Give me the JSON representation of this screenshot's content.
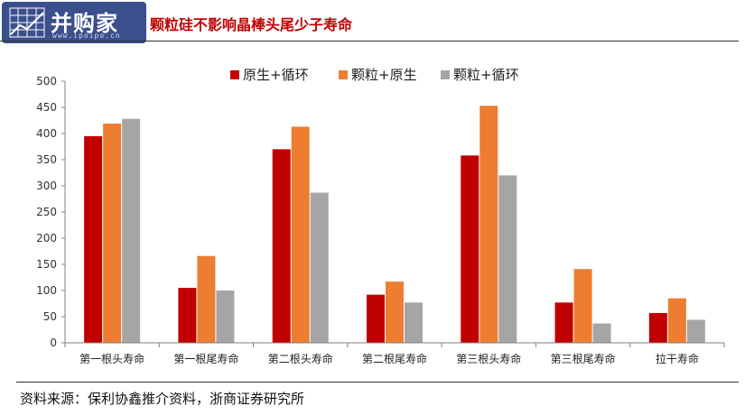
{
  "header": {
    "logo_text": "并购家",
    "logo_sub": "www.ipoipo.cn",
    "title": "颗粒硅不影响晶棒头尾少子寿命"
  },
  "footer": {
    "source": "资料来源：保利协鑫推介资料，浙商证券研究所"
  },
  "colors": {
    "title": "#c00000",
    "series": [
      "#c00000",
      "#ed7d31",
      "#a5a5a5"
    ]
  },
  "chart_data": {
    "type": "bar",
    "title": "",
    "xlabel": "",
    "ylabel": "",
    "ylim": [
      0,
      500
    ],
    "yticks": [
      0,
      50,
      100,
      150,
      200,
      250,
      300,
      350,
      400,
      450,
      500
    ],
    "grid": false,
    "legend": "top-center",
    "categories": [
      "第一根头寿命",
      "第一根尾寿命",
      "第二根头寿命",
      "第二根尾寿命",
      "第三根头寿命",
      "第三根尾寿命",
      "拉干寿命"
    ],
    "series": [
      {
        "name": "原生+循环",
        "color": "#c00000",
        "values": [
          395,
          105,
          370,
          92,
          358,
          77,
          57
        ]
      },
      {
        "name": "颗粒+原生",
        "color": "#ed7d31",
        "values": [
          419,
          166,
          413,
          117,
          453,
          141,
          85
        ]
      },
      {
        "name": "颗粒+循环",
        "color": "#a5a5a5",
        "values": [
          428,
          100,
          287,
          77,
          320,
          37,
          44
        ]
      }
    ]
  }
}
